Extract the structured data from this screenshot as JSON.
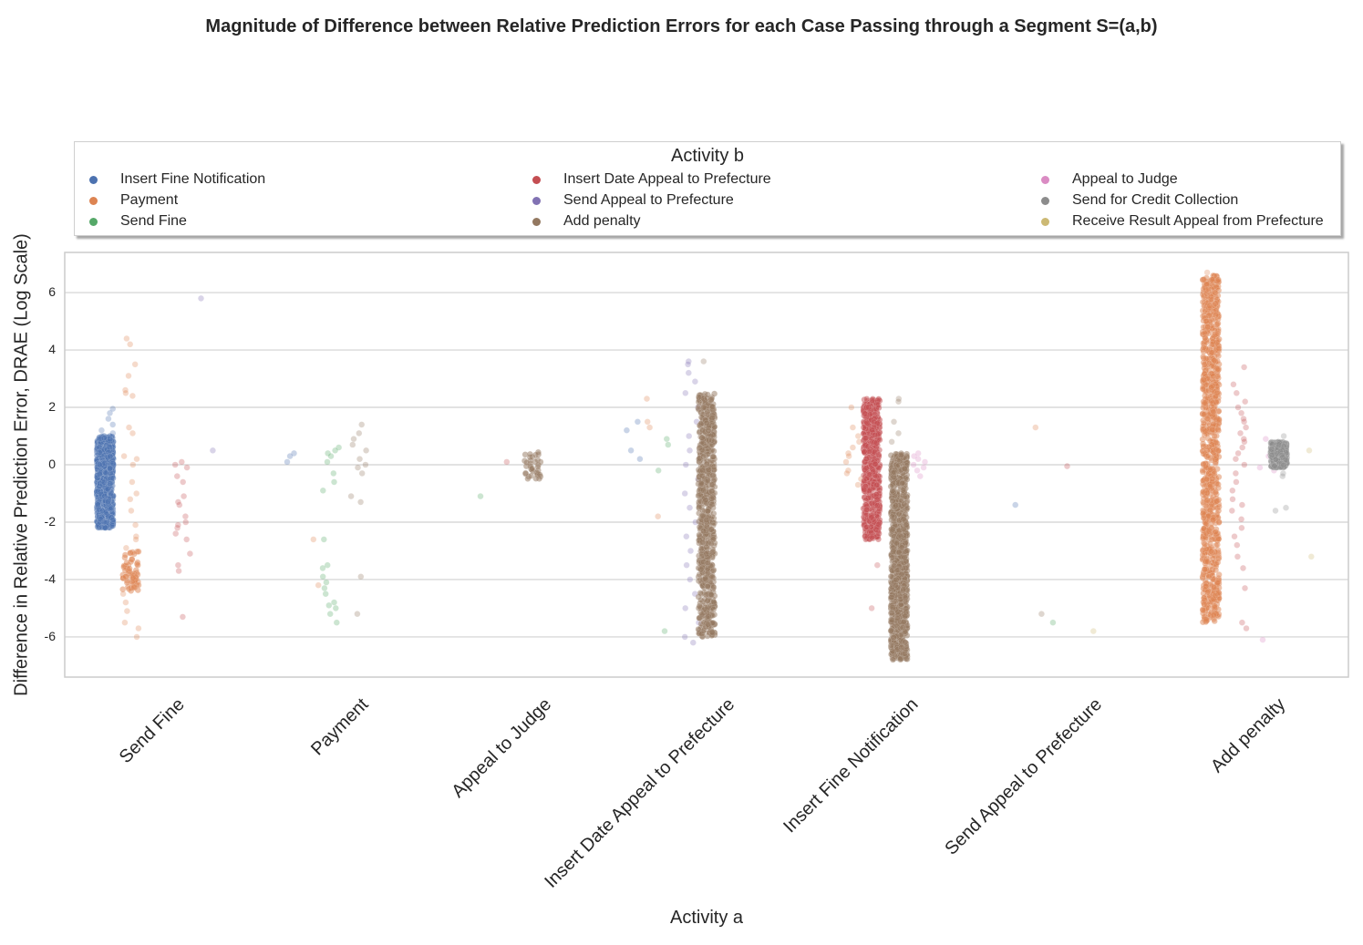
{
  "chart_data": {
    "type": "scatter",
    "title": "Magnitude of Difference between Relative Prediction Errors for each Case Passing through a Segment S=(a,b)",
    "xlabel": "Activity a",
    "ylabel": "Difference in Relative Prediction Error, DRAE (Log Scale)",
    "categories": [
      "Send Fine",
      "Payment",
      "Appeal to Judge",
      "Insert Date Appeal to Prefecture",
      "Insert Fine Notification",
      "Send Appeal to Prefecture",
      "Add penalty"
    ],
    "ylim": [
      -7.4,
      7.4
    ],
    "yticks": [
      -6,
      -4,
      -2,
      0,
      2,
      4,
      6
    ],
    "grid": true,
    "legend": {
      "title": "Activity b",
      "placement": "top",
      "columns": 3,
      "entries": [
        {
          "name": "Insert Fine Notification",
          "color": "#4c72b0"
        },
        {
          "name": "Payment",
          "color": "#dd8452"
        },
        {
          "name": "Send Fine",
          "color": "#55a868"
        },
        {
          "name": "Insert Date Appeal to Prefecture",
          "color": "#c44e52"
        },
        {
          "name": "Send Appeal to Prefecture",
          "color": "#8172b3"
        },
        {
          "name": "Add penalty",
          "color": "#937860"
        },
        {
          "name": "Appeal to Judge",
          "color": "#da8bc3"
        },
        {
          "name": "Send for Credit Collection",
          "color": "#8c8c8c"
        },
        {
          "name": "Receive Result Appeal from Prefecture",
          "color": "#ccb974"
        }
      ]
    },
    "series": [
      {
        "category": "Send Fine",
        "hue": "Insert Fine Notification",
        "offset": -0.28,
        "dense": {
          "count": 900,
          "min": -2.2,
          "max": 1.0
        },
        "points": [
          1.2,
          1.4,
          1.6,
          1.8,
          1.95,
          1.1,
          -1.0,
          -2.0
        ]
      },
      {
        "category": "Send Fine",
        "hue": "Payment",
        "offset": -0.14,
        "dense": {
          "count": 60,
          "min": -4.4,
          "max": -3.0
        },
        "points": [
          4.4,
          4.2,
          3.5,
          3.1,
          2.6,
          2.4,
          2.5,
          1.3,
          1.1,
          0.3,
          0.2,
          -0.6,
          -1.2,
          -1.6,
          -2.1,
          -2.5,
          -2.6,
          -2.9,
          -4.5,
          -4.8,
          -5.1,
          -5.5,
          -5.7,
          -6.0,
          -1.0,
          0.0
        ]
      },
      {
        "category": "Send Fine",
        "hue": "Insert Date Appeal to Prefecture",
        "offset": 0.14,
        "dense": null,
        "points": [
          0.1,
          -0.1,
          -0.4,
          -0.6,
          -1.1,
          -1.4,
          -1.8,
          -2.0,
          -2.2,
          -2.4,
          -2.6,
          -3.1,
          -3.5,
          -3.7,
          -5.3,
          0.0,
          -1.3,
          -2.1
        ]
      },
      {
        "category": "Send Fine",
        "hue": "Send Appeal to Prefecture",
        "offset": 0.28,
        "dense": null,
        "points": [
          5.8,
          0.5
        ]
      },
      {
        "category": "Payment",
        "hue": "Insert Fine Notification",
        "offset": -0.28,
        "dense": null,
        "points": [
          0.4,
          0.3,
          0.1
        ]
      },
      {
        "category": "Payment",
        "hue": "Payment",
        "offset": -0.14,
        "dense": null,
        "points": [
          -2.6,
          -4.2
        ]
      },
      {
        "category": "Payment",
        "hue": "Send Fine",
        "offset": -0.05,
        "dense": null,
        "points": [
          0.6,
          0.5,
          0.4,
          0.3,
          0.1,
          -0.3,
          -0.6,
          -0.9,
          -2.6,
          -3.5,
          -3.6,
          -3.9,
          -4.1,
          -4.3,
          -4.5,
          -4.8,
          -4.9,
          -5.0,
          -5.2,
          -5.5
        ]
      },
      {
        "category": "Payment",
        "hue": "Add penalty",
        "offset": 0.1,
        "dense": null,
        "points": [
          1.4,
          1.1,
          0.9,
          0.7,
          0.5,
          0.2,
          0.0,
          -0.1,
          -0.3,
          -1.1,
          -1.3,
          -3.9,
          -5.2
        ]
      },
      {
        "category": "Appeal to Judge",
        "hue": "Send Fine",
        "offset": -0.2,
        "dense": null,
        "points": [
          -1.1
        ]
      },
      {
        "category": "Appeal to Judge",
        "hue": "Insert Date Appeal to Prefecture",
        "offset": -0.1,
        "dense": null,
        "points": [
          0.1
        ]
      },
      {
        "category": "Appeal to Judge",
        "hue": "Add penalty",
        "offset": 0.05,
        "dense": {
          "count": 35,
          "min": -0.5,
          "max": 0.5
        },
        "points": []
      },
      {
        "category": "Insert Date Appeal to Prefecture",
        "hue": "Insert Fine Notification",
        "offset": -0.4,
        "dense": null,
        "points": [
          1.5,
          1.2,
          0.5,
          0.2
        ]
      },
      {
        "category": "Insert Date Appeal to Prefecture",
        "hue": "Payment",
        "offset": -0.3,
        "dense": null,
        "points": [
          2.3,
          1.5,
          1.3,
          -1.8
        ]
      },
      {
        "category": "Insert Date Appeal to Prefecture",
        "hue": "Send Fine",
        "offset": -0.22,
        "dense": null,
        "points": [
          0.9,
          0.7,
          -0.2,
          -5.8
        ]
      },
      {
        "category": "Insert Date Appeal to Prefecture",
        "hue": "Send Appeal to Prefecture",
        "offset": -0.08,
        "dense": null,
        "points": [
          3.6,
          3.5,
          3.2,
          2.9,
          2.5,
          2.0,
          1.5,
          1.0,
          0.5,
          0.0,
          -0.5,
          -1.0,
          -1.5,
          -2.0,
          -2.5,
          -3.0,
          -3.5,
          -4.0,
          -4.5,
          -5.0,
          -5.5,
          -6.0,
          -6.2
        ]
      },
      {
        "category": "Insert Date Appeal to Prefecture",
        "hue": "Add penalty",
        "offset": 0.0,
        "dense": {
          "count": 700,
          "min": -6.0,
          "max": 2.5
        },
        "points": [
          3.6
        ]
      },
      {
        "category": "Insert Fine Notification",
        "hue": "Payment",
        "offset": -0.2,
        "dense": null,
        "points": [
          2.0,
          1.3,
          1.0,
          0.8,
          0.6,
          0.4,
          0.3,
          0.1,
          -0.2,
          -0.3,
          -0.5,
          -0.7
        ]
      },
      {
        "category": "Insert Fine Notification",
        "hue": "Insert Date Appeal to Prefecture",
        "offset": -0.1,
        "dense": {
          "count": 600,
          "min": -2.6,
          "max": 2.3
        },
        "points": [
          -3.5,
          -5.0
        ]
      },
      {
        "category": "Insert Fine Notification",
        "hue": "Add penalty",
        "offset": 0.05,
        "dense": {
          "count": 1000,
          "min": -6.8,
          "max": 0.4
        },
        "points": [
          2.3,
          2.2,
          1.5,
          1.1,
          0.8
        ]
      },
      {
        "category": "Insert Fine Notification",
        "hue": "Appeal to Judge",
        "offset": 0.15,
        "dense": null,
        "points": [
          0.4,
          0.3,
          0.2,
          0.1,
          0.0,
          -0.1,
          -0.2,
          -0.4
        ]
      },
      {
        "category": "Send Appeal to Prefecture",
        "hue": "Insert Fine Notification",
        "offset": -0.3,
        "dense": null,
        "points": [
          -1.4
        ]
      },
      {
        "category": "Send Appeal to Prefecture",
        "hue": "Payment",
        "offset": -0.2,
        "dense": null,
        "points": [
          1.3
        ]
      },
      {
        "category": "Send Appeal to Prefecture",
        "hue": "Insert Date Appeal to Prefecture",
        "offset": -0.05,
        "dense": null,
        "points": [
          -0.05
        ]
      },
      {
        "category": "Send Appeal to Prefecture",
        "hue": "Add penalty",
        "offset": -0.15,
        "dense": null,
        "points": [
          -5.2
        ]
      },
      {
        "category": "Send Appeal to Prefecture",
        "hue": "Send Fine",
        "offset": -0.1,
        "dense": null,
        "points": [
          -5.5
        ]
      },
      {
        "category": "Send Appeal to Prefecture",
        "hue": "Receive Result Appeal from Prefecture",
        "offset": 0.1,
        "dense": null,
        "points": [
          -5.8
        ]
      },
      {
        "category": "Add penalty",
        "hue": "Payment",
        "offset": -0.25,
        "dense": {
          "count": 900,
          "min": -5.5,
          "max": 6.6
        },
        "points": [
          6.7
        ]
      },
      {
        "category": "Add penalty",
        "hue": "Insert Date Appeal to Prefecture",
        "offset": -0.1,
        "dense": null,
        "points": [
          3.4,
          2.8,
          2.5,
          2.2,
          2.0,
          1.8,
          1.5,
          1.3,
          1.1,
          0.8,
          0.6,
          0.4,
          0.2,
          0.0,
          -0.3,
          -0.6,
          -0.9,
          -1.2,
          -1.4,
          -1.6,
          -1.9,
          -2.2,
          -2.5,
          -2.8,
          -3.2,
          -3.6,
          -4.3,
          -5.5,
          -5.7,
          1.6,
          0.9
        ]
      },
      {
        "category": "Add penalty",
        "hue": "Appeal to Judge",
        "offset": 0.05,
        "dense": null,
        "points": [
          0.9,
          0.3,
          -0.1,
          -0.2,
          -6.1
        ]
      },
      {
        "category": "Add penalty",
        "hue": "Send for Credit Collection",
        "offset": 0.12,
        "dense": {
          "count": 350,
          "min": -0.1,
          "max": 0.8
        },
        "points": [
          1.0,
          -0.3,
          -0.4,
          -1.5,
          -1.6
        ]
      },
      {
        "category": "Add penalty",
        "hue": "Receive Result Appeal from Prefecture",
        "offset": 0.3,
        "dense": null,
        "points": [
          0.5,
          -3.2
        ]
      }
    ]
  }
}
